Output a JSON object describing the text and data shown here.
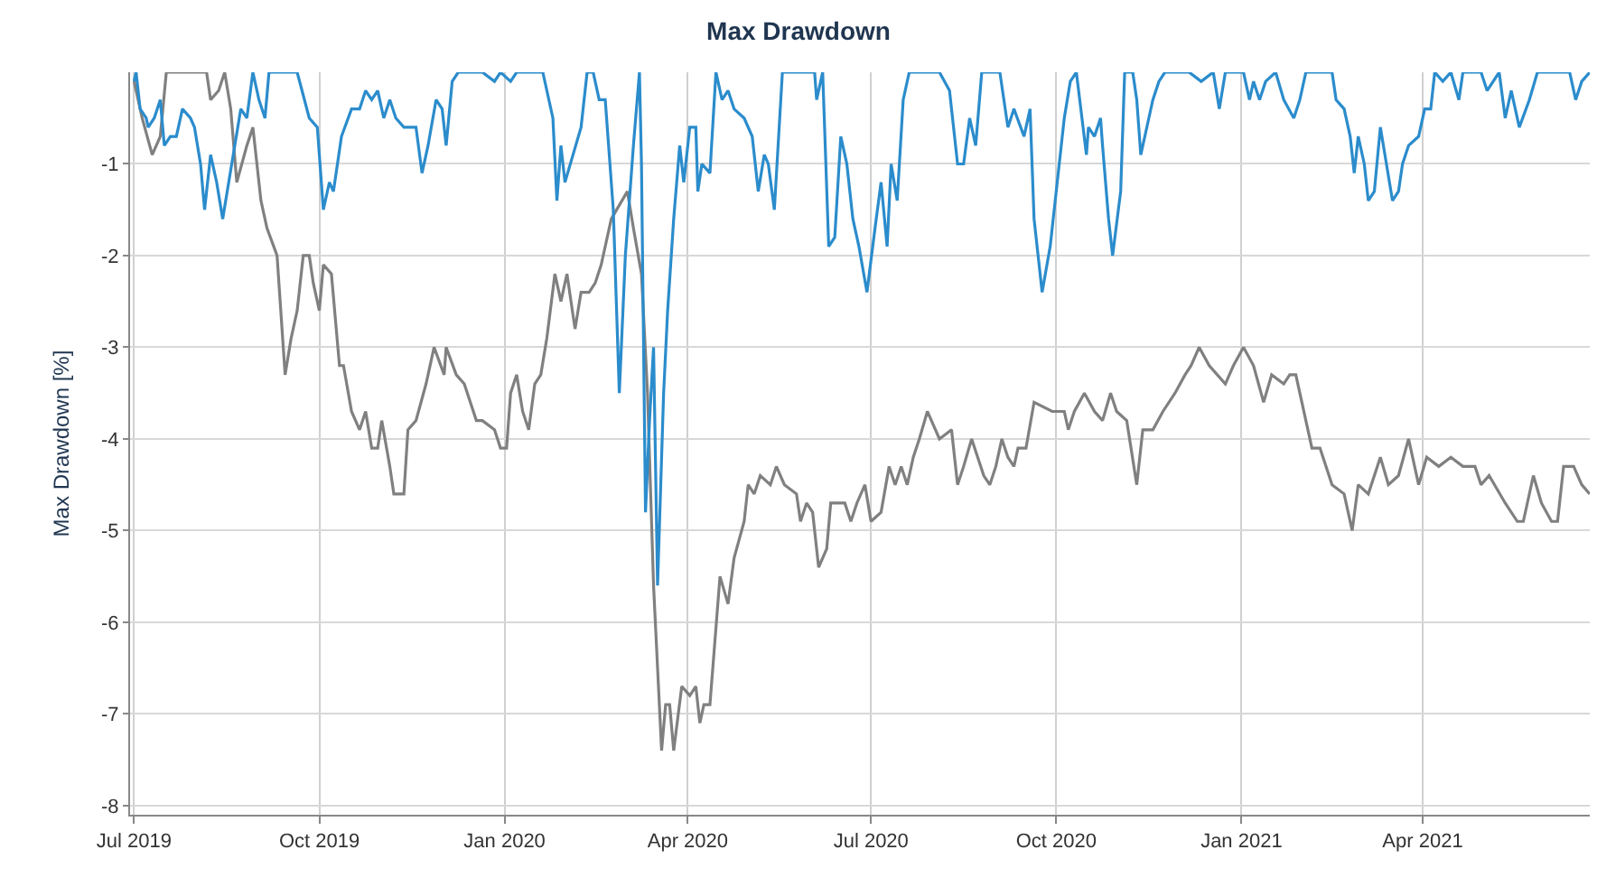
{
  "chart_data": {
    "type": "line",
    "title": "Max Drawdown",
    "ylabel": "Max Drawdown [%]",
    "xlim": [
      "2019-06-29",
      "2021-06-23"
    ],
    "xticks": [
      {
        "value": "2019-07-01",
        "label": "Jul 2019"
      },
      {
        "value": "2019-10-01",
        "label": "Oct 2019"
      },
      {
        "value": "2020-01-01",
        "label": "Jan 2020"
      },
      {
        "value": "2020-04-01",
        "label": "Apr 2020"
      },
      {
        "value": "2020-07-01",
        "label": "Jul 2020"
      },
      {
        "value": "2020-10-01",
        "label": "Oct 2020"
      },
      {
        "value": "2021-01-01",
        "label": "Jan 2021"
      },
      {
        "value": "2021-04-01",
        "label": "Apr 2021"
      }
    ],
    "ylim": [
      -8.1,
      0
    ],
    "yticks": [
      -8,
      -7,
      -6,
      -5,
      -4,
      -3,
      -2,
      -1
    ],
    "grid": true,
    "marker": "none",
    "line_style": "solid",
    "series": [
      {
        "color": "#808080",
        "x": [
          "2019-07-01",
          "2019-07-05",
          "2019-07-10",
          "2019-07-14",
          "2019-07-17",
          "2019-08-06",
          "2019-08-08",
          "2019-08-12",
          "2019-08-15",
          "2019-08-18",
          "2019-08-21",
          "2019-08-26",
          "2019-08-29",
          "2019-09-02",
          "2019-09-05",
          "2019-09-10",
          "2019-09-14",
          "2019-09-17",
          "2019-09-20",
          "2019-09-23",
          "2019-09-26",
          "2019-09-28",
          "2019-10-01",
          "2019-10-03",
          "2019-10-07",
          "2019-10-11",
          "2019-10-13",
          "2019-10-17",
          "2019-10-21",
          "2019-10-24",
          "2019-10-27",
          "2019-10-30",
          "2019-11-01",
          "2019-11-05",
          "2019-11-07",
          "2019-11-12",
          "2019-11-14",
          "2019-11-18",
          "2019-11-23",
          "2019-11-27",
          "2019-12-02",
          "2019-12-03",
          "2019-12-08",
          "2019-12-12",
          "2019-12-18",
          "2019-12-21",
          "2019-12-27",
          "2019-12-30",
          "2020-01-02",
          "2020-01-04",
          "2020-01-07",
          "2020-01-10",
          "2020-01-13",
          "2020-01-16",
          "2020-01-19",
          "2020-01-22",
          "2020-01-26",
          "2020-01-29",
          "2020-02-01",
          "2020-02-05",
          "2020-02-08",
          "2020-02-12",
          "2020-02-15",
          "2020-02-18",
          "2020-02-23",
          "2020-03-02",
          "2020-03-05",
          "2020-03-09",
          "2020-03-12",
          "2020-03-15",
          "2020-03-19",
          "2020-03-21",
          "2020-03-23",
          "2020-03-25",
          "2020-03-29",
          "2020-04-02",
          "2020-04-05",
          "2020-04-07",
          "2020-04-09",
          "2020-04-12",
          "2020-04-17",
          "2020-04-21",
          "2020-04-24",
          "2020-04-29",
          "2020-05-01",
          "2020-05-04",
          "2020-05-07",
          "2020-05-12",
          "2020-05-15",
          "2020-05-19",
          "2020-05-25",
          "2020-05-27",
          "2020-05-30",
          "2020-06-02",
          "2020-06-05",
          "2020-06-09",
          "2020-06-11",
          "2020-06-18",
          "2020-06-21",
          "2020-06-24",
          "2020-06-28",
          "2020-07-01",
          "2020-07-06",
          "2020-07-10",
          "2020-07-13",
          "2020-07-16",
          "2020-07-19",
          "2020-07-22",
          "2020-07-25",
          "2020-07-29",
          "2020-08-04",
          "2020-08-10",
          "2020-08-13",
          "2020-08-16",
          "2020-08-20",
          "2020-08-26",
          "2020-08-29",
          "2020-09-01",
          "2020-09-04",
          "2020-09-07",
          "2020-09-10",
          "2020-09-12",
          "2020-09-16",
          "2020-09-20",
          "2020-09-29",
          "2020-10-05",
          "2020-10-07",
          "2020-10-10",
          "2020-10-15",
          "2020-10-20",
          "2020-10-24",
          "2020-10-28",
          "2020-10-31",
          "2020-11-05",
          "2020-11-10",
          "2020-11-13",
          "2020-11-18",
          "2020-11-23",
          "2020-11-29",
          "2020-12-04",
          "2020-12-07",
          "2020-12-11",
          "2020-12-16",
          "2020-12-24",
          "2020-12-28",
          "2021-01-02",
          "2021-01-07",
          "2021-01-12",
          "2021-01-16",
          "2021-01-22",
          "2021-01-25",
          "2021-01-28",
          "2021-01-31",
          "2021-02-05",
          "2021-02-09",
          "2021-02-15",
          "2021-02-21",
          "2021-02-25",
          "2021-02-28",
          "2021-03-05",
          "2021-03-11",
          "2021-03-15",
          "2021-03-20",
          "2021-03-25",
          "2021-03-30",
          "2021-04-03",
          "2021-04-09",
          "2021-04-15",
          "2021-04-21",
          "2021-04-27",
          "2021-04-30",
          "2021-05-04",
          "2021-05-12",
          "2021-05-18",
          "2021-05-21",
          "2021-05-26",
          "2021-05-30",
          "2021-06-04",
          "2021-06-07",
          "2021-06-10",
          "2021-06-15",
          "2021-06-19",
          "2021-06-23"
        ],
        "values": [
          -0.1,
          -0.5,
          -0.9,
          -0.7,
          0,
          0,
          -0.3,
          -0.2,
          0,
          -0.4,
          -1.2,
          -0.8,
          -0.6,
          -1.4,
          -1.7,
          -2.0,
          -3.3,
          -2.9,
          -2.6,
          -2.0,
          -2.0,
          -2.3,
          -2.6,
          -2.1,
          -2.2,
          -3.2,
          -3.2,
          -3.7,
          -3.9,
          -3.7,
          -4.1,
          -4.1,
          -3.8,
          -4.3,
          -4.6,
          -4.6,
          -3.9,
          -3.8,
          -3.4,
          -3.0,
          -3.3,
          -3.0,
          -3.3,
          -3.4,
          -3.8,
          -3.8,
          -3.9,
          -4.1,
          -4.1,
          -3.5,
          -3.3,
          -3.7,
          -3.9,
          -3.4,
          -3.3,
          -2.9,
          -2.2,
          -2.5,
          -2.2,
          -2.8,
          -2.4,
          -2.4,
          -2.3,
          -2.1,
          -1.6,
          -1.3,
          -1.7,
          -2.2,
          -3.5,
          -5.6,
          -7.4,
          -6.9,
          -6.9,
          -7.4,
          -6.7,
          -6.8,
          -6.7,
          -7.1,
          -6.9,
          -6.9,
          -5.5,
          -5.8,
          -5.3,
          -4.9,
          -4.5,
          -4.6,
          -4.4,
          -4.5,
          -4.3,
          -4.5,
          -4.6,
          -4.9,
          -4.7,
          -4.8,
          -5.4,
          -5.2,
          -4.7,
          -4.7,
          -4.9,
          -4.7,
          -4.5,
          -4.9,
          -4.8,
          -4.3,
          -4.5,
          -4.3,
          -4.5,
          -4.2,
          -4.0,
          -3.7,
          -4.0,
          -3.9,
          -4.5,
          -4.3,
          -4.0,
          -4.4,
          -4.5,
          -4.3,
          -4.0,
          -4.2,
          -4.3,
          -4.1,
          -4.1,
          -3.6,
          -3.7,
          -3.7,
          -3.9,
          -3.7,
          -3.5,
          -3.7,
          -3.8,
          -3.5,
          -3.7,
          -3.8,
          -4.5,
          -3.9,
          -3.9,
          -3.7,
          -3.5,
          -3.3,
          -3.2,
          -3.0,
          -3.2,
          -3.4,
          -3.2,
          -3.0,
          -3.2,
          -3.6,
          -3.3,
          -3.4,
          -3.3,
          -3.3,
          -3.6,
          -4.1,
          -4.1,
          -4.5,
          -4.6,
          -5.0,
          -4.5,
          -4.6,
          -4.2,
          -4.5,
          -4.4,
          -4.0,
          -4.5,
          -4.2,
          -4.3,
          -4.2,
          -4.3,
          -4.3,
          -4.5,
          -4.4,
          -4.7,
          -4.9,
          -4.9,
          -4.4,
          -4.7,
          -4.9,
          -4.9,
          -4.3,
          -4.3,
          -4.5,
          -4.6
        ]
      },
      {
        "color": "#2b8ccc",
        "x": [
          "2019-07-01",
          "2019-07-02",
          "2019-07-04",
          "2019-07-07",
          "2019-07-08",
          "2019-07-11",
          "2019-07-14",
          "2019-07-16",
          "2019-07-19",
          "2019-07-22",
          "2019-07-25",
          "2019-07-29",
          "2019-07-31",
          "2019-08-03",
          "2019-08-05",
          "2019-08-08",
          "2019-08-11",
          "2019-08-14",
          "2019-08-17",
          "2019-08-20",
          "2019-08-23",
          "2019-08-26",
          "2019-08-29",
          "2019-09-01",
          "2019-09-04",
          "2019-09-06",
          "2019-09-20",
          "2019-09-26",
          "2019-09-30",
          "2019-10-03",
          "2019-10-06",
          "2019-10-08",
          "2019-10-12",
          "2019-10-17",
          "2019-10-21",
          "2019-10-24",
          "2019-10-27",
          "2019-10-30",
          "2019-11-02",
          "2019-11-05",
          "2019-11-08",
          "2019-11-12",
          "2019-11-18",
          "2019-11-21",
          "2019-11-24",
          "2019-11-28",
          "2019-12-01",
          "2019-12-03",
          "2019-12-06",
          "2019-12-09",
          "2019-12-21",
          "2019-12-27",
          "2019-12-30",
          "2020-01-04",
          "2020-01-07",
          "2020-01-20",
          "2020-01-25",
          "2020-01-27",
          "2020-01-29",
          "2020-01-31",
          "2020-02-04",
          "2020-02-08",
          "2020-02-11",
          "2020-02-14",
          "2020-02-17",
          "2020-02-20",
          "2020-02-24",
          "2020-02-27",
          "2020-03-01",
          "2020-03-05",
          "2020-03-08",
          "2020-03-09",
          "2020-03-11",
          "2020-03-13",
          "2020-03-15",
          "2020-03-17",
          "2020-03-20",
          "2020-03-22",
          "2020-03-25",
          "2020-03-28",
          "2020-03-30",
          "2020-04-02",
          "2020-04-05",
          "2020-04-06",
          "2020-04-08",
          "2020-04-12",
          "2020-04-15",
          "2020-04-18",
          "2020-04-21",
          "2020-04-24",
          "2020-04-29",
          "2020-05-03",
          "2020-05-06",
          "2020-05-09",
          "2020-05-11",
          "2020-05-14",
          "2020-05-18",
          "2020-06-03",
          "2020-06-04",
          "2020-06-07",
          "2020-06-10",
          "2020-06-13",
          "2020-06-16",
          "2020-06-19",
          "2020-06-22",
          "2020-06-25",
          "2020-06-29",
          "2020-07-03",
          "2020-07-06",
          "2020-07-09",
          "2020-07-11",
          "2020-07-14",
          "2020-07-17",
          "2020-07-20",
          "2020-08-04",
          "2020-08-09",
          "2020-08-13",
          "2020-08-16",
          "2020-08-19",
          "2020-08-22",
          "2020-08-25",
          "2020-09-03",
          "2020-09-07",
          "2020-09-10",
          "2020-09-15",
          "2020-09-18",
          "2020-09-20",
          "2020-09-24",
          "2020-09-28",
          "2020-10-01",
          "2020-10-05",
          "2020-10-08",
          "2020-10-11",
          "2020-10-16",
          "2020-10-17",
          "2020-10-20",
          "2020-10-23",
          "2020-10-24",
          "2020-10-27",
          "2020-10-29",
          "2020-11-02",
          "2020-11-04",
          "2020-11-08",
          "2020-11-10",
          "2020-11-12",
          "2020-11-16",
          "2020-11-18",
          "2020-11-21",
          "2020-11-24",
          "2020-12-06",
          "2020-12-12",
          "2020-12-18",
          "2020-12-21",
          "2020-12-24",
          "2021-01-02",
          "2021-01-05",
          "2021-01-07",
          "2021-01-10",
          "2021-01-13",
          "2021-01-18",
          "2021-01-22",
          "2021-01-27",
          "2021-01-30",
          "2021-02-02",
          "2021-02-15",
          "2021-02-17",
          "2021-02-21",
          "2021-02-24",
          "2021-02-26",
          "2021-02-28",
          "2021-03-03",
          "2021-03-05",
          "2021-03-08",
          "2021-03-11",
          "2021-03-14",
          "2021-03-17",
          "2021-03-20",
          "2021-03-22",
          "2021-03-25",
          "2021-03-30",
          "2021-04-02",
          "2021-04-05",
          "2021-04-07",
          "2021-04-11",
          "2021-04-15",
          "2021-04-19",
          "2021-04-21",
          "2021-04-30",
          "2021-05-03",
          "2021-05-09",
          "2021-05-12",
          "2021-05-15",
          "2021-05-19",
          "2021-05-24",
          "2021-05-28",
          "2021-06-13",
          "2021-06-16",
          "2021-06-19",
          "2021-06-23"
        ],
        "values": [
          -0.1,
          0,
          -0.4,
          -0.5,
          -0.6,
          -0.5,
          -0.3,
          -0.8,
          -0.7,
          -0.7,
          -0.4,
          -0.5,
          -0.6,
          -1.0,
          -1.5,
          -0.9,
          -1.2,
          -1.6,
          -1.2,
          -0.8,
          -0.4,
          -0.5,
          0,
          -0.3,
          -0.5,
          0,
          0,
          -0.5,
          -0.6,
          -1.5,
          -1.2,
          -1.3,
          -0.7,
          -0.4,
          -0.4,
          -0.2,
          -0.3,
          -0.2,
          -0.5,
          -0.3,
          -0.5,
          -0.6,
          -0.6,
          -1.1,
          -0.8,
          -0.3,
          -0.4,
          -0.8,
          -0.1,
          0,
          0,
          -0.1,
          0,
          -0.1,
          0,
          0,
          -0.5,
          -1.4,
          -0.8,
          -1.2,
          -0.9,
          -0.6,
          0,
          0,
          -0.3,
          -0.3,
          -1.5,
          -3.5,
          -2.0,
          -0.8,
          0,
          -1.0,
          -4.8,
          -3.8,
          -3.0,
          -5.6,
          -3.5,
          -2.6,
          -1.6,
          -0.8,
          -1.2,
          -0.6,
          -0.6,
          -1.3,
          -1.0,
          -1.1,
          0,
          -0.3,
          -0.2,
          -0.4,
          -0.5,
          -0.7,
          -1.3,
          -0.9,
          -1.0,
          -1.5,
          0,
          0,
          -0.3,
          0,
          -1.9,
          -1.8,
          -0.7,
          -1.0,
          -1.6,
          -1.9,
          -2.4,
          -1.7,
          -1.2,
          -1.9,
          -1.0,
          -1.4,
          -0.3,
          0,
          0,
          -0.2,
          -1.0,
          -1.0,
          -0.5,
          -0.8,
          0,
          0,
          -0.6,
          -0.4,
          -0.7,
          -0.4,
          -1.6,
          -2.4,
          -1.9,
          -1.3,
          -0.5,
          -0.1,
          0,
          -0.9,
          -0.6,
          -0.7,
          -0.5,
          -0.8,
          -1.6,
          -2.0,
          -1.3,
          0,
          0,
          -0.3,
          -0.9,
          -0.5,
          -0.3,
          -0.1,
          0,
          0,
          -0.1,
          0,
          -0.4,
          0,
          0,
          -0.3,
          -0.1,
          -0.3,
          -0.1,
          0,
          -0.3,
          -0.5,
          -0.3,
          0,
          0,
          -0.3,
          -0.4,
          -0.7,
          -1.1,
          -0.7,
          -1.0,
          -1.4,
          -1.3,
          -0.6,
          -1.0,
          -1.4,
          -1.3,
          -1.0,
          -0.8,
          -0.7,
          -0.4,
          -0.4,
          0,
          -0.1,
          0,
          -0.3,
          0,
          0,
          -0.2,
          0,
          -0.5,
          -0.2,
          -0.6,
          -0.3,
          0,
          0,
          -0.3,
          -0.1,
          0
        ]
      }
    ]
  }
}
